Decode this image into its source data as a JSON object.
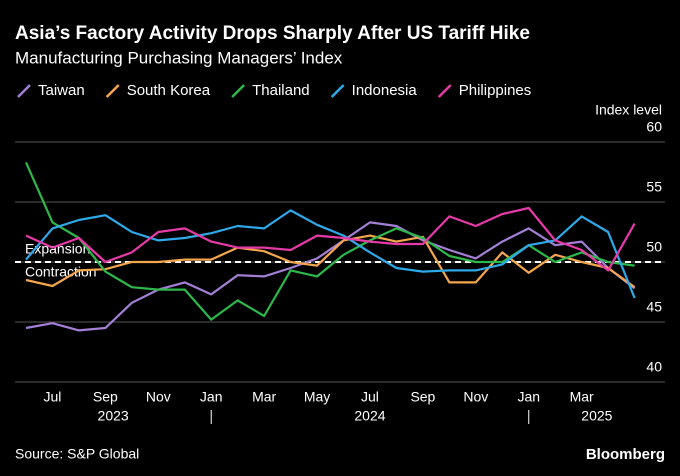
{
  "chart_data": {
    "type": "line",
    "title": "Asia’s Factory Activity Drops Sharply After US Tariff Hike",
    "subtitle": "Manufacturing Purchasing Managers’ Index",
    "y_axis_label": "Index level",
    "annotations": [
      "Expansion",
      "Contraction"
    ],
    "source": "Source: S&P Global",
    "brand": "Bloomberg",
    "categories": [
      null,
      "Jul",
      null,
      "Sep",
      null,
      "Nov",
      null,
      "Jan",
      null,
      "Mar",
      null,
      "May",
      null,
      "Jul",
      null,
      "Sep",
      null,
      "Nov",
      null,
      "Jan",
      null,
      "Mar",
      null,
      null
    ],
    "years": [
      "2023",
      "2024",
      "2025"
    ],
    "reference_line": 50,
    "ylim": [
      40,
      60
    ],
    "yticks": [
      40,
      45,
      50,
      55,
      60
    ],
    "grid": true,
    "series": [
      {
        "name": "Taiwan",
        "color": "#a47fd6",
        "values": [
          44.5,
          44.9,
          44.3,
          44.5,
          46.6,
          47.7,
          48.3,
          47.3,
          48.9,
          48.8,
          49.5,
          50.3,
          51.8,
          53.3,
          53.0,
          51.8,
          51.0,
          50.3,
          51.7,
          52.8,
          51.4,
          51.7,
          49.5,
          47.8
        ]
      },
      {
        "name": "South Korea",
        "color": "#f4a64c",
        "values": [
          48.5,
          48.0,
          49.3,
          49.4,
          50.0,
          50.0,
          50.2,
          50.2,
          51.2,
          50.9,
          50.0,
          49.7,
          51.8,
          52.2,
          51.7,
          52.1,
          48.3,
          48.3,
          50.8,
          49.1,
          50.6,
          50.0,
          49.5,
          47.9
        ]
      },
      {
        "name": "Thailand",
        "color": "#2db84b",
        "values": [
          58.3,
          53.3,
          52.0,
          49.2,
          47.9,
          47.7,
          47.7,
          45.2,
          46.8,
          45.5,
          49.3,
          48.8,
          50.6,
          51.8,
          52.8,
          52.0,
          50.5,
          50.0,
          50.0,
          51.4,
          50.0,
          50.8,
          50.0,
          49.7
        ]
      },
      {
        "name": "Indonesia",
        "color": "#2ea9e9",
        "values": [
          50.2,
          52.8,
          53.5,
          53.9,
          52.5,
          51.8,
          52.0,
          52.4,
          53.0,
          52.8,
          54.3,
          53.1,
          52.2,
          50.8,
          49.5,
          49.2,
          49.3,
          49.3,
          49.8,
          51.4,
          51.8,
          53.8,
          52.5,
          47.0
        ]
      },
      {
        "name": "Philippines",
        "color": "#e63aa8",
        "values": [
          52.2,
          51.2,
          52.0,
          50.0,
          50.8,
          52.5,
          52.8,
          51.7,
          51.2,
          51.2,
          51.0,
          52.2,
          52.0,
          51.7,
          51.5,
          51.5,
          53.8,
          53.0,
          54.0,
          54.5,
          51.8,
          51.0,
          49.3,
          53.2
        ]
      }
    ]
  }
}
